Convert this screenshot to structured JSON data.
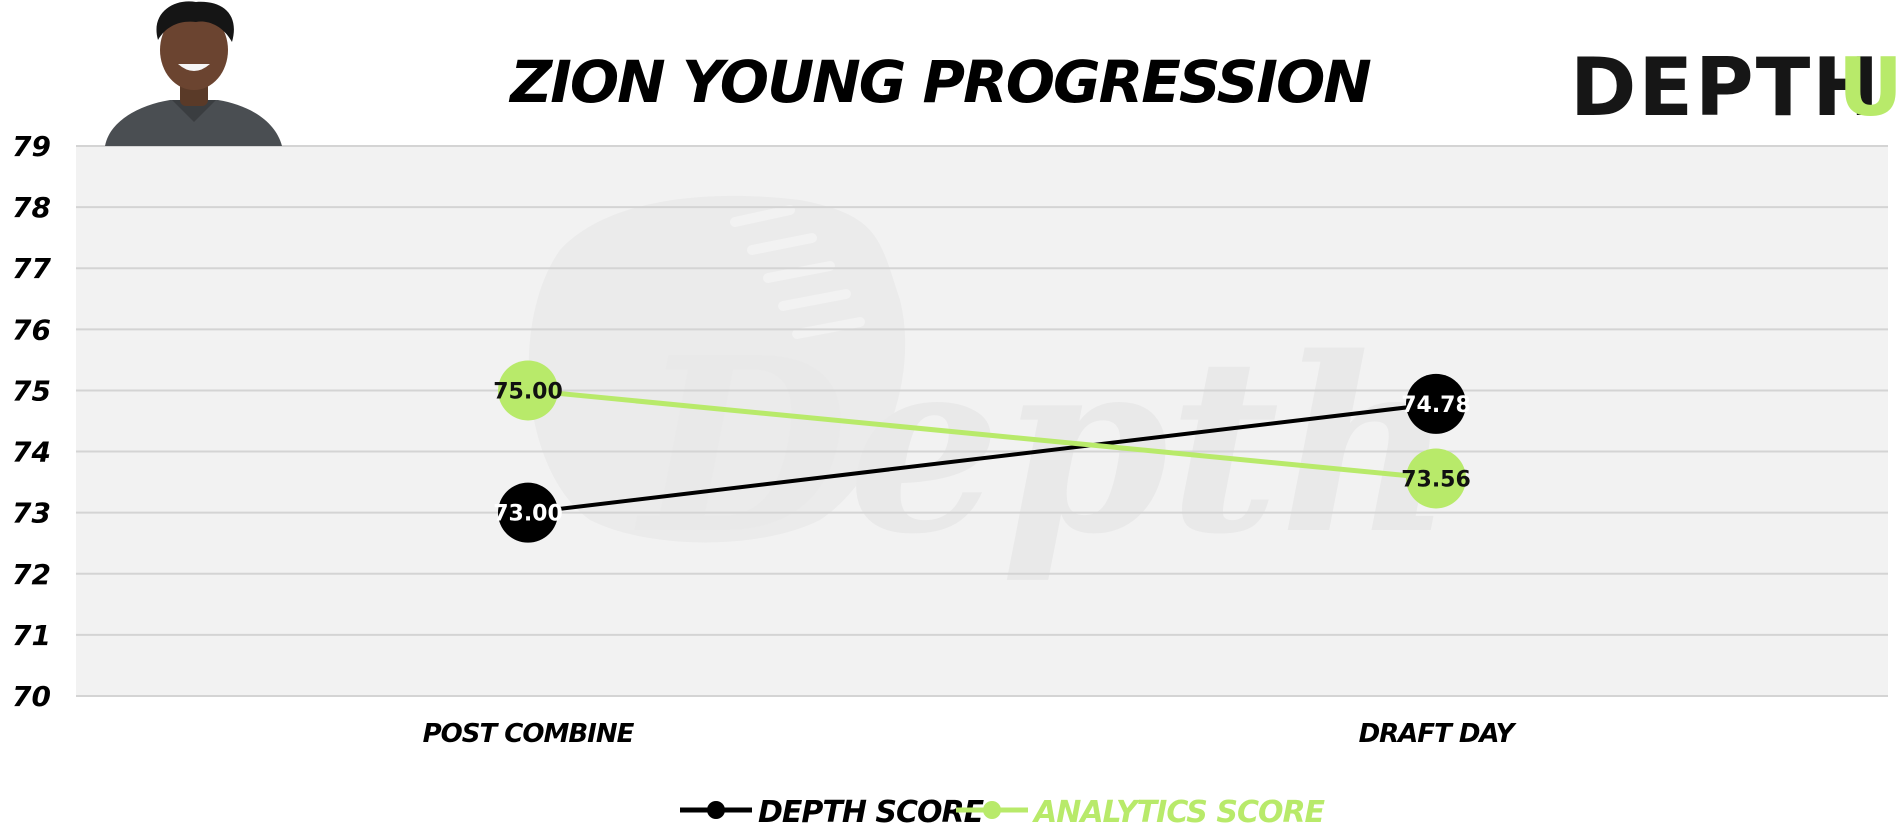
{
  "header": {
    "title": "ZION YOUNG PROGRESSION",
    "logo_text": "DEPTH",
    "logo_accent": "U"
  },
  "watermark": {
    "text": "Depth"
  },
  "colors": {
    "depth_series": "#000000",
    "analytics_series": "#b8ea6a",
    "plot_background": "#f2f2f2",
    "gridline": "#d4d4d4",
    "logo_dark": "#161616",
    "logo_accent": "#b8ea6a",
    "depth_label_text": "#ffffff",
    "analytics_label_text": "#111111"
  },
  "chart_data": {
    "type": "line",
    "title": "ZION YOUNG PROGRESSION",
    "categories": [
      "POST COMBINE",
      "DRAFT DAY"
    ],
    "ylim": [
      70,
      79
    ],
    "yticks": [
      70,
      71,
      72,
      73,
      74,
      75,
      76,
      77,
      78,
      79
    ],
    "grid": true,
    "legend_position": "bottom-center",
    "series": [
      {
        "name": "DEPTH SCORE",
        "color": "#000000",
        "values": [
          73.0,
          74.78
        ],
        "labels": [
          "73.00",
          "74.78"
        ]
      },
      {
        "name": "ANALYTICS SCORE",
        "color": "#b8ea6a",
        "values": [
          75.0,
          73.56
        ],
        "labels": [
          "75.00",
          "73.56"
        ]
      }
    ]
  }
}
